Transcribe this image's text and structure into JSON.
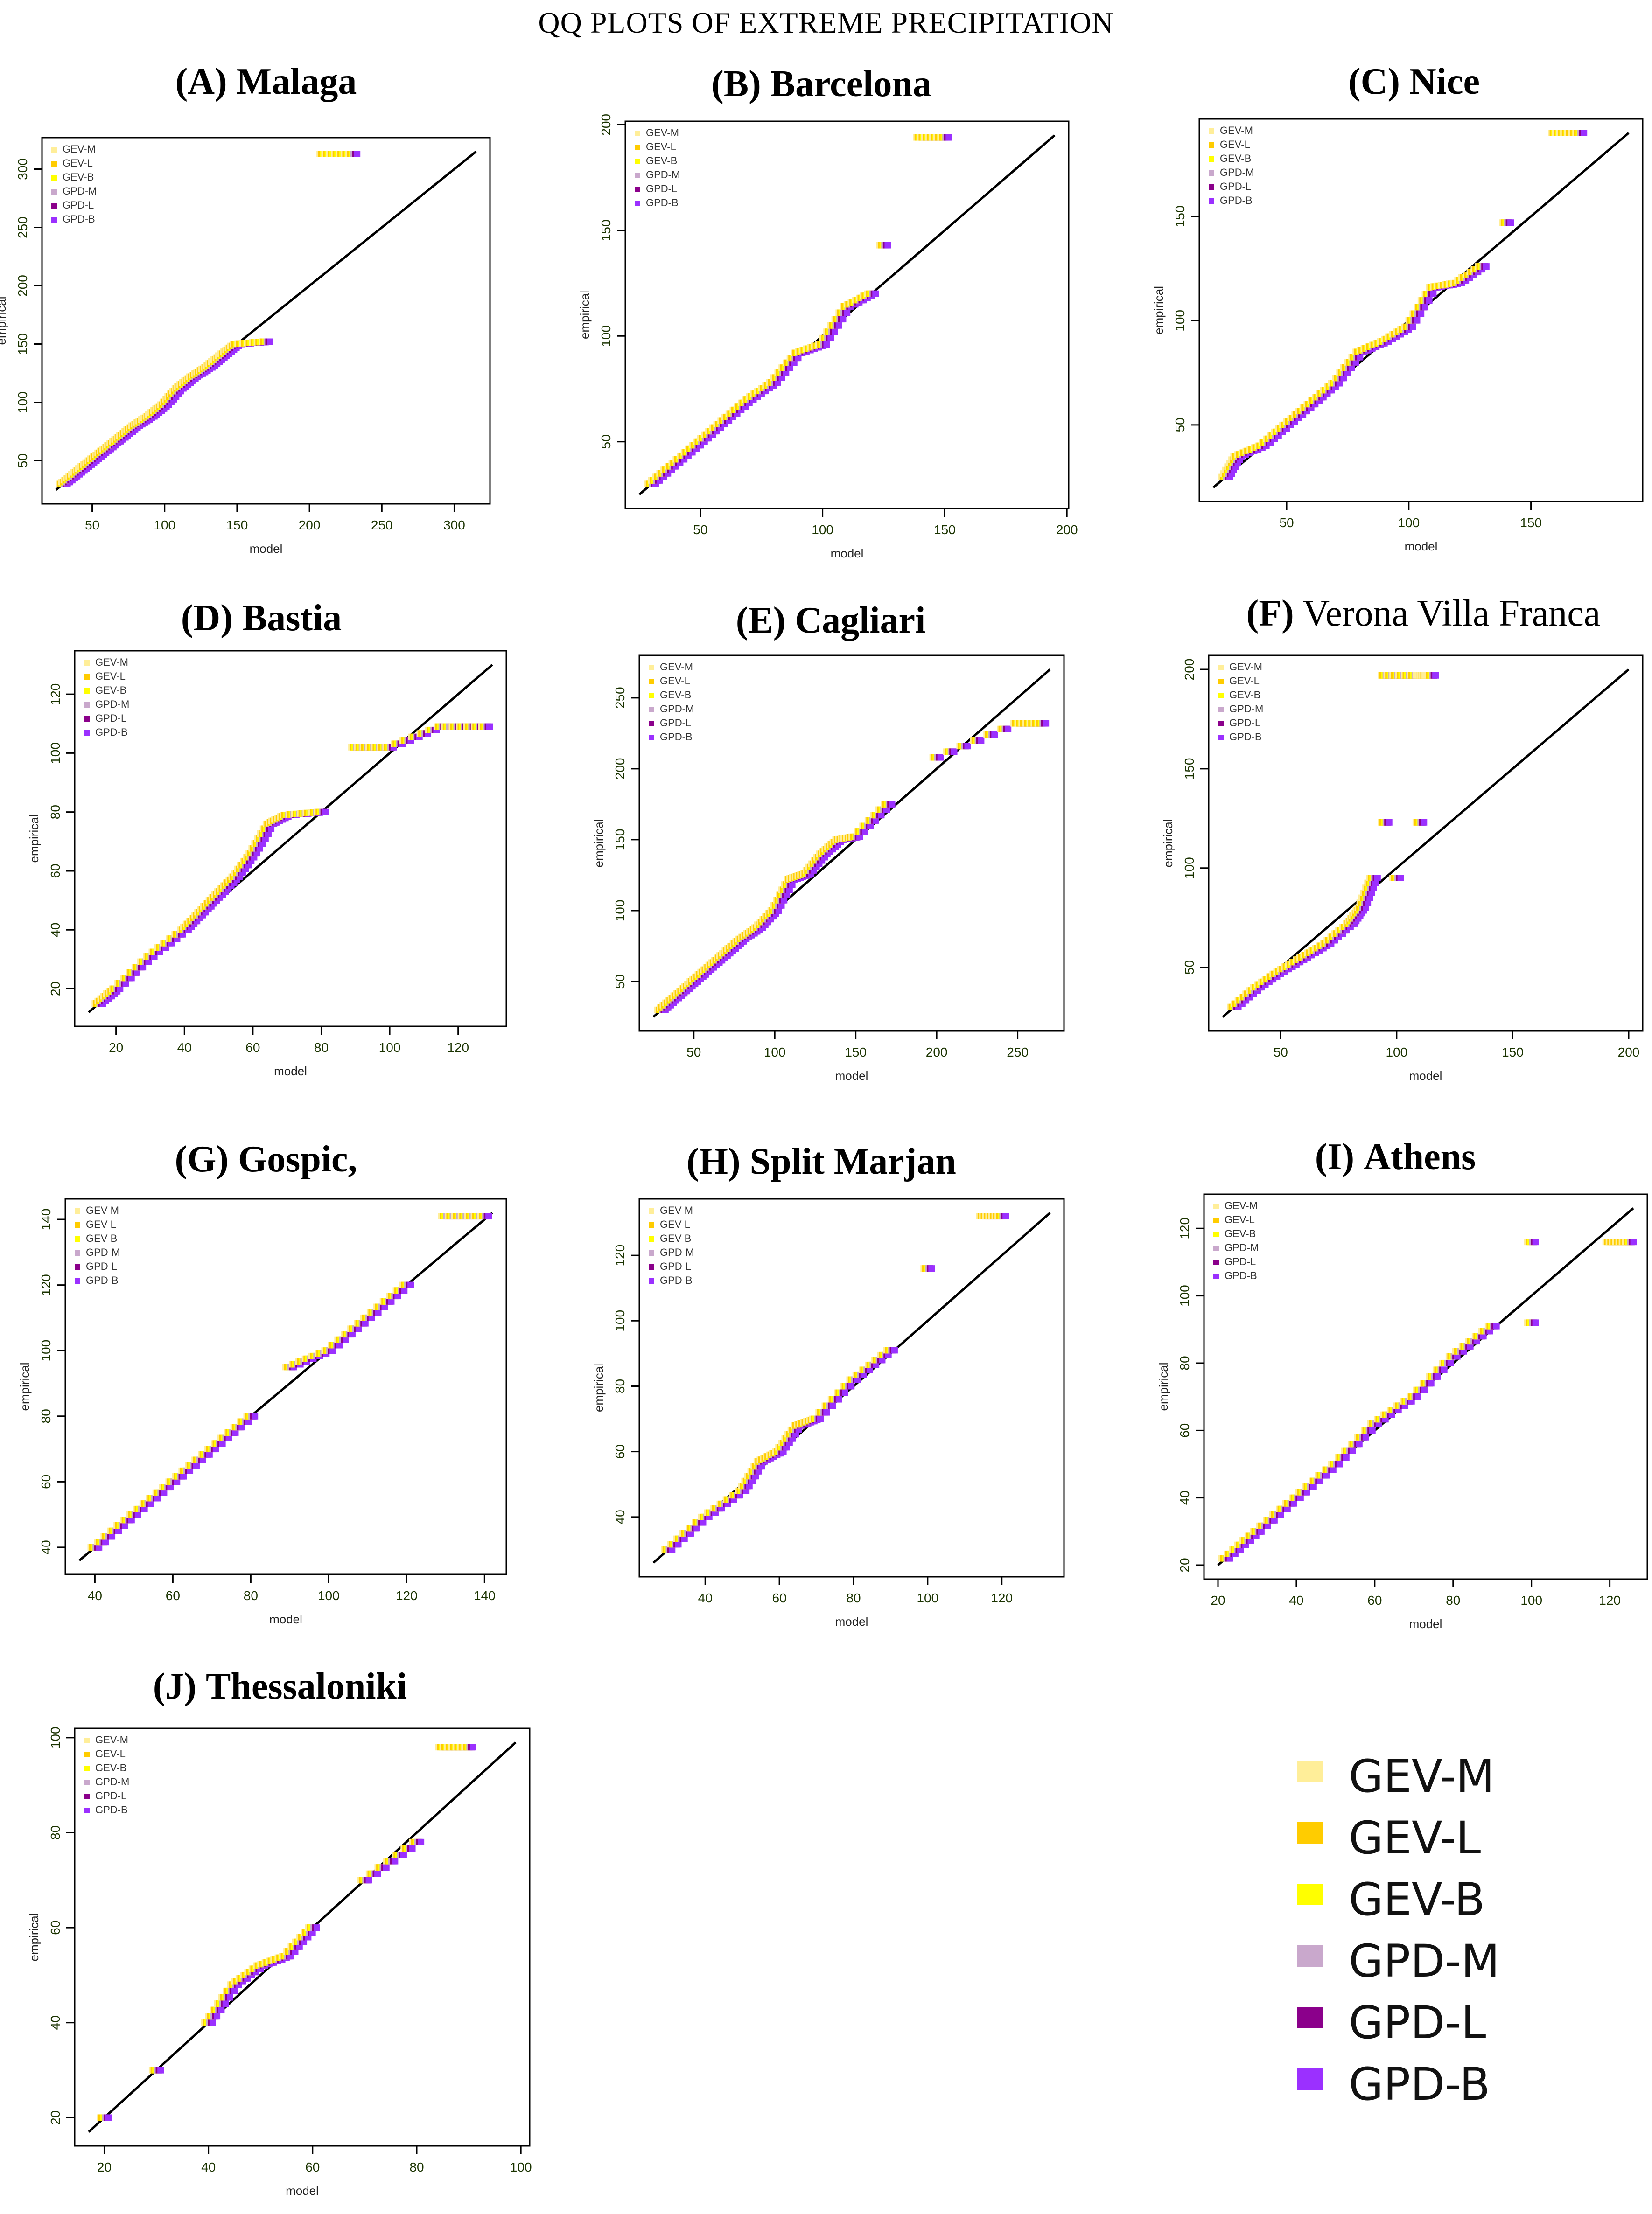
{
  "title": "QQ PLOTS OF EXTREME PRECIPITATION",
  "legend": {
    "entries": [
      {
        "label": "GEV-M",
        "color": "#FFEE99"
      },
      {
        "label": "GEV-L",
        "color": "#FFCC00"
      },
      {
        "label": "GEV-B",
        "color": "#FFFF00"
      },
      {
        "label": "GPD-M",
        "color": "#C9A8CC"
      },
      {
        "label": "GPD-L",
        "color": "#8B008B"
      },
      {
        "label": "GPD-B",
        "color": "#9B30FF"
      }
    ]
  },
  "chart_data": [
    {
      "type": "scatter",
      "id": "A",
      "title_prefix": "(A)",
      "title_name": "Malaga",
      "xlabel": "model",
      "ylabel": "empirical",
      "xlim": [
        25,
        315
      ],
      "ylim": [
        25,
        315
      ],
      "xticks": [
        50,
        100,
        150,
        200,
        250,
        300
      ],
      "yticks": [
        50,
        100,
        150,
        200,
        250,
        300
      ],
      "quantiles": [
        [
          30,
          30
        ],
        [
          40,
          40
        ],
        [
          50,
          50
        ],
        [
          60,
          60
        ],
        [
          70,
          70
        ],
        [
          80,
          80
        ],
        [
          90,
          88
        ],
        [
          100,
          98
        ],
        [
          110,
          112
        ],
        [
          120,
          122
        ],
        [
          130,
          130
        ],
        [
          140,
          140
        ],
        [
          150,
          150
        ],
        [
          170,
          152
        ],
        [
          210,
          313
        ],
        [
          230,
          313
        ]
      ],
      "legend": "top-left"
    },
    {
      "type": "scatter",
      "id": "B",
      "title_prefix": "(B)",
      "title_name": "Barcelona",
      "xlabel": "model",
      "ylabel": "empirical",
      "xlim": [
        25,
        195
      ],
      "ylim": [
        25,
        195
      ],
      "xticks": [
        50,
        100,
        150,
        200
      ],
      "yticks": [
        50,
        100,
        150,
        200
      ],
      "quantiles": [
        [
          30,
          30
        ],
        [
          40,
          40
        ],
        [
          50,
          50
        ],
        [
          60,
          60
        ],
        [
          70,
          70
        ],
        [
          80,
          78
        ],
        [
          90,
          92
        ],
        [
          100,
          96
        ],
        [
          110,
          114
        ],
        [
          120,
          120
        ],
        [
          125,
          143
        ],
        [
          140,
          194
        ],
        [
          150,
          194
        ]
      ],
      "legend": "top-left"
    },
    {
      "type": "scatter",
      "id": "C",
      "title_prefix": "(C)",
      "title_name": "Nice",
      "xlabel": "model",
      "ylabel": "empirical",
      "xlim": [
        20,
        190
      ],
      "ylim": [
        20,
        190
      ],
      "xticks": [
        50,
        100,
        150
      ],
      "yticks": [
        50,
        100,
        150
      ],
      "quantiles": [
        [
          25,
          25
        ],
        [
          30,
          35
        ],
        [
          40,
          40
        ],
        [
          50,
          50
        ],
        [
          60,
          60
        ],
        [
          70,
          70
        ],
        [
          80,
          85
        ],
        [
          90,
          90
        ],
        [
          100,
          97
        ],
        [
          110,
          116
        ],
        [
          120,
          118
        ],
        [
          130,
          126
        ],
        [
          140,
          147
        ],
        [
          160,
          190
        ],
        [
          170,
          190
        ]
      ],
      "legend": "top-left"
    },
    {
      "type": "scatter",
      "id": "D",
      "title_prefix": "(D)",
      "title_name": "Bastia",
      "xlabel": "model",
      "ylabel": "empirical",
      "xlim": [
        12,
        130
      ],
      "ylim": [
        12,
        130
      ],
      "xticks": [
        20,
        40,
        60,
        80,
        100,
        120
      ],
      "yticks": [
        20,
        40,
        60,
        80,
        100,
        120
      ],
      "quantiles": [
        [
          15,
          15
        ],
        [
          20,
          20
        ],
        [
          30,
          31
        ],
        [
          40,
          40
        ],
        [
          45,
          46
        ],
        [
          50,
          52
        ],
        [
          55,
          58
        ],
        [
          60,
          66
        ],
        [
          65,
          76
        ],
        [
          70,
          79
        ],
        [
          80,
          80
        ],
        [
          90,
          102
        ],
        [
          100,
          102
        ],
        [
          115,
          109
        ],
        [
          128,
          109
        ]
      ],
      "legend": "top-left"
    },
    {
      "type": "scatter",
      "id": "E",
      "title_prefix": "(E)",
      "title_name": "Cagliari",
      "xlabel": "model",
      "ylabel": "empirical",
      "xlim": [
        25,
        270
      ],
      "ylim": [
        25,
        270
      ],
      "xticks": [
        50,
        100,
        150,
        200,
        250
      ],
      "yticks": [
        50,
        100,
        150,
        200,
        250
      ],
      "quantiles": [
        [
          30,
          30
        ],
        [
          40,
          40
        ],
        [
          50,
          50
        ],
        [
          60,
          60
        ],
        [
          70,
          70
        ],
        [
          80,
          80
        ],
        [
          90,
          88
        ],
        [
          100,
          100
        ],
        [
          110,
          122
        ],
        [
          120,
          126
        ],
        [
          130,
          140
        ],
        [
          140,
          150
        ],
        [
          150,
          152
        ],
        [
          170,
          175
        ],
        [
          200,
          208
        ],
        [
          250,
          232
        ],
        [
          265,
          232
        ]
      ],
      "legend": "top-left"
    },
    {
      "type": "scatter",
      "id": "F",
      "title_prefix": "(F)",
      "title_name": "Verona Villa Franca",
      "xlabel": "model",
      "ylabel": "empirical",
      "xlim": [
        25,
        200
      ],
      "ylim": [
        25,
        200
      ],
      "xticks": [
        50,
        100,
        150,
        200
      ],
      "yticks": [
        50,
        100,
        150,
        200
      ],
      "quantiles": [
        [
          30,
          30
        ],
        [
          40,
          40
        ],
        [
          50,
          48
        ],
        [
          60,
          55
        ],
        [
          70,
          62
        ],
        [
          80,
          72
        ],
        [
          85,
          80
        ],
        [
          90,
          95
        ],
        [
          95,
          123
        ],
        [
          100,
          95
        ],
        [
          110,
          123
        ],
        [
          95,
          197
        ],
        [
          110,
          197
        ],
        [
          115,
          197
        ]
      ],
      "legend": "top-left"
    },
    {
      "type": "scatter",
      "id": "G",
      "title_prefix": "(G)",
      "title_name": "Gospic,",
      "xlabel": "model",
      "ylabel": "empirical",
      "xlim": [
        36,
        142
      ],
      "ylim": [
        36,
        142
      ],
      "xticks": [
        40,
        60,
        80,
        100,
        120,
        140
      ],
      "yticks": [
        40,
        60,
        80,
        100,
        120,
        140
      ],
      "quantiles": [
        [
          40,
          40
        ],
        [
          50,
          50
        ],
        [
          60,
          60
        ],
        [
          70,
          70
        ],
        [
          80,
          80
        ],
        [
          90,
          95
        ],
        [
          100,
          100
        ],
        [
          110,
          110
        ],
        [
          120,
          120
        ],
        [
          130,
          141
        ],
        [
          140,
          141
        ]
      ],
      "legend": "top-left"
    },
    {
      "type": "scatter",
      "id": "H",
      "title_prefix": "(H)",
      "title_name": "Split Marjan",
      "xlabel": "model",
      "ylabel": "empirical",
      "xlim": [
        26,
        133
      ],
      "ylim": [
        26,
        133
      ],
      "xticks": [
        40,
        60,
        80,
        100,
        120
      ],
      "yticks": [
        40,
        60,
        80,
        100,
        120
      ],
      "quantiles": [
        [
          30,
          30
        ],
        [
          40,
          40
        ],
        [
          50,
          48
        ],
        [
          55,
          57
        ],
        [
          60,
          60
        ],
        [
          65,
          68
        ],
        [
          70,
          70
        ],
        [
          80,
          82
        ],
        [
          90,
          91
        ],
        [
          100,
          116
        ],
        [
          115,
          132
        ],
        [
          120,
          132
        ]
      ],
      "legend": "top-left"
    },
    {
      "type": "scatter",
      "id": "I",
      "title_prefix": "(I)",
      "title_name": "Athens",
      "xlabel": "model",
      "ylabel": "empirical",
      "xlim": [
        20,
        126
      ],
      "ylim": [
        20,
        126
      ],
      "xticks": [
        20,
        40,
        60,
        80,
        100,
        120
      ],
      "yticks": [
        20,
        40,
        60,
        80,
        100,
        120
      ],
      "quantiles": [
        [
          22,
          22
        ],
        [
          30,
          30
        ],
        [
          40,
          40
        ],
        [
          50,
          50
        ],
        [
          60,
          62
        ],
        [
          70,
          70
        ],
        [
          80,
          82
        ],
        [
          90,
          91
        ],
        [
          100,
          116
        ],
        [
          100,
          92
        ],
        [
          120,
          116
        ],
        [
          125,
          116
        ]
      ],
      "legend": "top-left"
    },
    {
      "type": "scatter",
      "id": "J",
      "title_prefix": "(J)",
      "title_name": "Thessaloniki",
      "xlabel": "model",
      "ylabel": "empirical",
      "xlim": [
        17,
        99
      ],
      "ylim": [
        17,
        99
      ],
      "xticks": [
        20,
        40,
        60,
        80,
        100
      ],
      "yticks": [
        20,
        40,
        60,
        80,
        100
      ],
      "quantiles": [
        [
          20,
          20
        ],
        [
          30,
          30
        ],
        [
          40,
          40
        ],
        [
          45,
          48
        ],
        [
          50,
          52
        ],
        [
          55,
          54
        ],
        [
          60,
          60
        ],
        [
          70,
          70
        ],
        [
          80,
          78
        ],
        [
          85,
          98
        ],
        [
          90,
          98
        ]
      ],
      "legend": "top-left"
    }
  ]
}
